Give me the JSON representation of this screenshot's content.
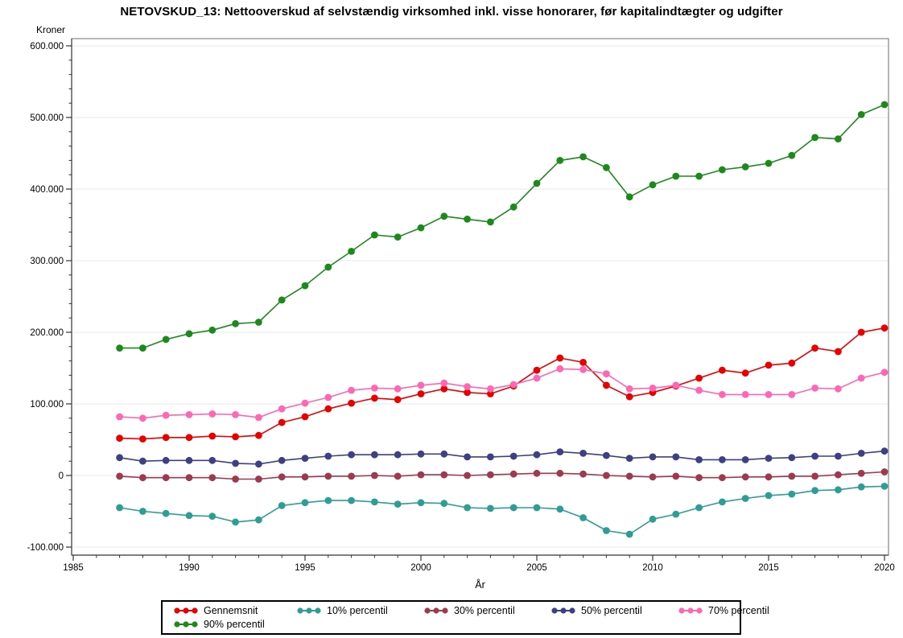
{
  "chart_data": {
    "type": "line",
    "title": "NETOVSKUD_13: Nettooverskud af selvstændig virksomhed inkl. visse honorarer, før kapitalindtægter og udgifter",
    "ylabel": "Kroner",
    "xlabel": "År",
    "xlim": [
      1985,
      2020
    ],
    "ylim": [
      -100000,
      600000
    ],
    "grid": true,
    "legend_position": "bottom",
    "x_major_ticks": [
      1985,
      1990,
      1995,
      2000,
      2005,
      2010,
      2015,
      2020
    ],
    "x_tick_labels": [
      "1985",
      "1990",
      "1995",
      "2000",
      "2005",
      "2010",
      "2015",
      "2020"
    ],
    "x_minor_step": 1,
    "y_major_ticks": [
      600000,
      500000,
      400000,
      300000,
      200000,
      100000,
      0,
      -100000
    ],
    "y_tick_labels": [
      "600.000",
      "500.000",
      "400.000",
      "300.000",
      "200.000",
      "100.000",
      "0",
      "-100.000"
    ],
    "y_minor_step": 20000,
    "x": [
      1987,
      1988,
      1989,
      1990,
      1991,
      1992,
      1993,
      1994,
      1995,
      1996,
      1997,
      1998,
      1999,
      2000,
      2001,
      2002,
      2003,
      2004,
      2005,
      2006,
      2007,
      2008,
      2009,
      2010,
      2011,
      2012,
      2013,
      2014,
      2015,
      2016,
      2017,
      2018,
      2019,
      2020
    ],
    "series": [
      {
        "name": "Gennemsnit",
        "color": "#EB0000",
        "values": [
          52000,
          51000,
          53000,
          53000,
          55000,
          54000,
          56000,
          74000,
          82000,
          93000,
          101000,
          108000,
          106000,
          114000,
          121000,
          116000,
          114000,
          125000,
          147000,
          164000,
          158000,
          126000,
          110000,
          116000,
          125000,
          136000,
          147000,
          143000,
          154000,
          157000,
          178000,
          173000,
          200000,
          206000
        ]
      },
      {
        "name": "10% percentil",
        "color": "#2E9E94",
        "values": [
          -45000,
          -50000,
          -53000,
          -56000,
          -57000,
          -65000,
          -62000,
          -42000,
          -38000,
          -35000,
          -35000,
          -37000,
          -40000,
          -38000,
          -39000,
          -45000,
          -46000,
          -45000,
          -45000,
          -47000,
          -59000,
          -77000,
          -82000,
          -61000,
          -54000,
          -45000,
          -37000,
          -32000,
          -28000,
          -26000,
          -21000,
          -20000,
          -16000,
          -15000
        ]
      },
      {
        "name": "30% percentil",
        "color": "#9E3A50",
        "values": [
          -1000,
          -3000,
          -3000,
          -3000,
          -3000,
          -5000,
          -5000,
          -2000,
          -2000,
          -1000,
          -1000,
          0,
          -1000,
          1000,
          1000,
          0,
          1000,
          2000,
          3000,
          3000,
          2000,
          0,
          -1000,
          -2000,
          -1000,
          -3000,
          -3000,
          -2000,
          -2000,
          -1000,
          -1000,
          1000,
          3000,
          5000
        ]
      },
      {
        "name": "50% percentil",
        "color": "#3F3F85",
        "values": [
          25000,
          20000,
          21000,
          21000,
          21000,
          17000,
          16000,
          21000,
          24000,
          27000,
          29000,
          29000,
          29000,
          30000,
          30000,
          26000,
          26000,
          27000,
          29000,
          33000,
          31000,
          28000,
          24000,
          26000,
          26000,
          22000,
          22000,
          22000,
          24000,
          25000,
          27000,
          27000,
          31000,
          34000
        ]
      },
      {
        "name": "70% percentil",
        "color": "#FF66B3",
        "values": [
          82000,
          80000,
          84000,
          85000,
          86000,
          85000,
          81000,
          93000,
          101000,
          109000,
          119000,
          122000,
          121000,
          126000,
          129000,
          124000,
          121000,
          127000,
          136000,
          149000,
          148000,
          142000,
          121000,
          122000,
          126000,
          119000,
          113000,
          113000,
          113000,
          113000,
          122000,
          121000,
          136000,
          144000
        ]
      },
      {
        "name": "90% percentil",
        "color": "#1B8A1B",
        "values": [
          178000,
          178000,
          190000,
          198000,
          203000,
          212000,
          214000,
          245000,
          265000,
          291000,
          313000,
          336000,
          333000,
          346000,
          362000,
          358000,
          354000,
          375000,
          408000,
          440000,
          445000,
          430000,
          389000,
          406000,
          418000,
          418000,
          427000,
          431000,
          436000,
          447000,
          472000,
          470000,
          504000,
          518000
        ]
      }
    ],
    "colors": {
      "grid": "#E9E9E9",
      "frame": "#6E6E6E",
      "axis": "#333333"
    }
  }
}
